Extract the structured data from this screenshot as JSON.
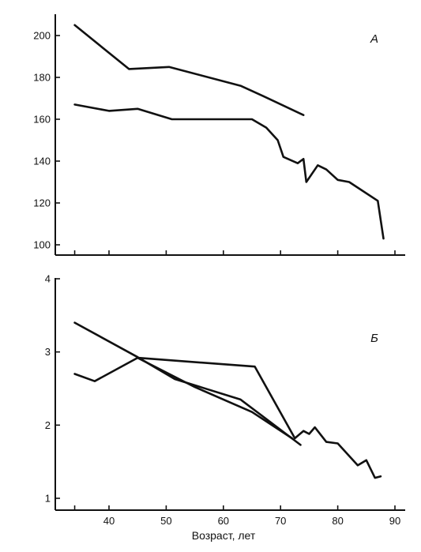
{
  "figure": {
    "xlabel": "Возраст, лет",
    "line_color": "#111111",
    "background": "#ffffff"
  },
  "chart_data": [
    {
      "type": "line",
      "panel_label": "А",
      "xlim": [
        30,
        90
      ],
      "ylim": [
        95,
        210
      ],
      "xticks": [
        40,
        50,
        60,
        70,
        80,
        90
      ],
      "xtick_labels": [],
      "yticks": [
        100,
        120,
        140,
        160,
        180,
        200
      ],
      "ytick_labels": [
        "100",
        "120",
        "140",
        "160",
        "180",
        "200"
      ],
      "grid": false,
      "series": [
        {
          "x": [
            34,
            43.5,
            50.5,
            63,
            67,
            74
          ],
          "y": [
            205,
            184,
            185,
            176,
            171,
            162
          ]
        },
        {
          "x": [
            34,
            40,
            45,
            51,
            58,
            65,
            67.5,
            69.5,
            70.5,
            73,
            74,
            74.5,
            76.5,
            78,
            80,
            82,
            87,
            88
          ],
          "y": [
            167,
            164,
            165,
            160,
            160,
            160,
            156,
            150,
            142,
            139,
            141,
            130,
            138,
            136,
            131,
            130,
            121,
            103
          ]
        }
      ]
    },
    {
      "type": "line",
      "panel_label": "Б",
      "xlim": [
        30,
        90
      ],
      "ylim": [
        0.9,
        4.05
      ],
      "xticks": [
        40,
        50,
        60,
        70,
        80,
        90
      ],
      "xtick_labels": [
        "40",
        "50",
        "60",
        "70",
        "80",
        "90"
      ],
      "yticks": [
        1,
        2,
        3,
        4
      ],
      "ytick_labels": [
        "1",
        "2",
        "3",
        "4"
      ],
      "grid": false,
      "series": [
        {
          "x": [
            34,
            45,
            51.5,
            63,
            73.5
          ],
          "y": [
            3.4,
            2.93,
            2.63,
            2.35,
            1.73
          ]
        },
        {
          "x": [
            34,
            37.5,
            45,
            65.5,
            72.5,
            74,
            75,
            76,
            78,
            80,
            83.5,
            85,
            86.5,
            87.5
          ],
          "y": [
            2.7,
            2.6,
            2.92,
            2.8,
            1.82,
            1.92,
            1.88,
            1.97,
            1.77,
            1.75,
            1.45,
            1.52,
            1.28,
            1.3
          ]
        },
        {
          "x": [
            45,
            55,
            65,
            72
          ],
          "y": [
            2.92,
            2.52,
            2.18,
            1.82
          ]
        }
      ]
    }
  ]
}
